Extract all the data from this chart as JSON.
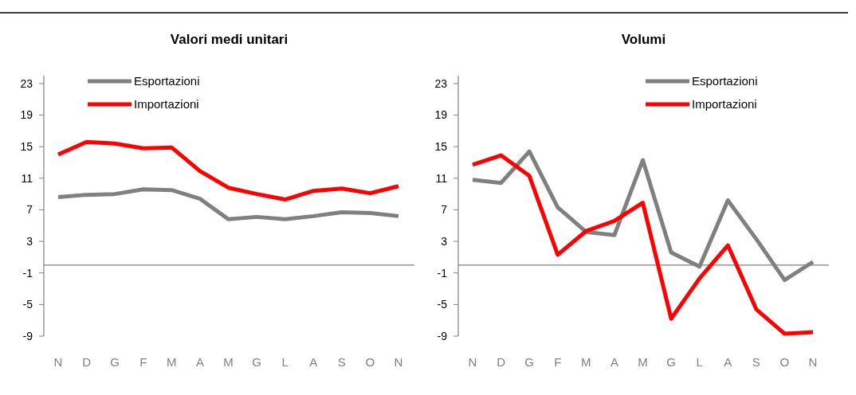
{
  "chart_data": [
    {
      "type": "line",
      "title": "Valori medi unitari",
      "categories": [
        "N",
        "D",
        "G",
        "F",
        "M",
        "A",
        "M",
        "G",
        "L",
        "A",
        "S",
        "O",
        "N"
      ],
      "series": [
        {
          "name": "Esportazioni",
          "color": "#808080",
          "values": [
            8.6,
            8.9,
            9.0,
            9.6,
            9.5,
            8.4,
            5.8,
            6.1,
            5.8,
            6.2,
            6.7,
            6.6,
            6.2
          ]
        },
        {
          "name": "Importazioni",
          "color": "#ff0000",
          "values": [
            14.0,
            15.6,
            15.4,
            14.8,
            14.9,
            11.9,
            9.8,
            9.0,
            8.3,
            9.4,
            9.7,
            9.1,
            10.0
          ]
        }
      ],
      "ylim": [
        -9,
        24
      ],
      "yticks": [
        -9,
        -5,
        -1,
        3,
        7,
        11,
        15,
        19,
        23
      ],
      "ref_lines": [
        {
          "axis": "y",
          "value": 0,
          "color": "#808080"
        }
      ],
      "legend": "top left",
      "grid": false
    },
    {
      "type": "line",
      "title": "Volumi",
      "categories": [
        "N",
        "D",
        "G",
        "F",
        "M",
        "A",
        "M",
        "G",
        "L",
        "A",
        "S",
        "O",
        "N"
      ],
      "series": [
        {
          "name": "Esportazioni",
          "color": "#808080",
          "values": [
            10.8,
            10.4,
            14.4,
            7.3,
            4.2,
            3.8,
            13.3,
            1.6,
            -0.2,
            8.2,
            3.3,
            -1.9,
            0.4
          ]
        },
        {
          "name": "Importazioni",
          "color": "#ff0000",
          "values": [
            12.7,
            13.9,
            11.3,
            1.3,
            4.3,
            5.6,
            7.9,
            -6.8,
            -1.7,
            2.5,
            -5.6,
            -8.7,
            -8.5
          ]
        }
      ],
      "ylim": [
        -9,
        24
      ],
      "yticks": [
        -9,
        -5,
        -1,
        3,
        7,
        11,
        15,
        19,
        23
      ],
      "ref_lines": [
        {
          "axis": "y",
          "value": 0,
          "color": "#808080"
        }
      ],
      "legend": "top right",
      "grid": false
    }
  ]
}
